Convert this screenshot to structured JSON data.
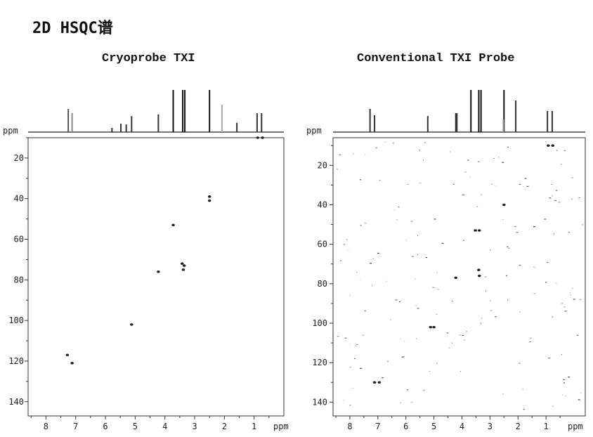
{
  "page_title": "2D HSQC谱",
  "chart_data": [
    {
      "type": "scatter",
      "subtype": "2D NMR contour (HSQC)",
      "title": "Cryoprobe TXI",
      "x_unit": "ppm",
      "y_unit": "ppm",
      "x_ticks": [
        8,
        7,
        6,
        5,
        4,
        3,
        2,
        1
      ],
      "y_ticks": [
        20,
        40,
        60,
        80,
        100,
        120,
        140
      ],
      "xlim": [
        8.6,
        0.0
      ],
      "ylim": [
        10,
        147
      ],
      "x_reversed": true,
      "y_reversed": true,
      "projection_peaks": [
        {
          "ppm": 7.25,
          "h": 0.55,
          "color": "#555555"
        },
        {
          "ppm": 7.12,
          "h": 0.45,
          "color": "#888888"
        },
        {
          "ppm": 5.78,
          "h": 0.1,
          "color": "#333333"
        },
        {
          "ppm": 5.48,
          "h": 0.2,
          "color": "#333333"
        },
        {
          "ppm": 5.3,
          "h": 0.18,
          "color": "#333333"
        },
        {
          "ppm": 5.12,
          "h": 0.38,
          "color": "#333333"
        },
        {
          "ppm": 4.22,
          "h": 0.42,
          "color": "#333333"
        },
        {
          "ppm": 3.72,
          "h": 1.0,
          "color": "#111111"
        },
        {
          "ppm": 3.4,
          "h": 1.0,
          "color": "#111111"
        },
        {
          "ppm": 3.33,
          "h": 1.0,
          "color": "#111111"
        },
        {
          "ppm": 2.5,
          "h": 1.0,
          "color": "#111111"
        },
        {
          "ppm": 2.08,
          "h": 0.65,
          "color": "#aaaaaa"
        },
        {
          "ppm": 1.58,
          "h": 0.22,
          "color": "#333333"
        },
        {
          "ppm": 0.9,
          "h": 0.45,
          "color": "#333333"
        },
        {
          "ppm": 0.75,
          "h": 0.45,
          "color": "#333333"
        }
      ],
      "peaks": [
        {
          "x": 0.88,
          "y": 10
        },
        {
          "x": 0.72,
          "y": 10
        },
        {
          "x": 2.5,
          "y": 39
        },
        {
          "x": 2.5,
          "y": 41
        },
        {
          "x": 3.72,
          "y": 53
        },
        {
          "x": 3.42,
          "y": 72
        },
        {
          "x": 3.35,
          "y": 73
        },
        {
          "x": 3.38,
          "y": 75
        },
        {
          "x": 4.22,
          "y": 76
        },
        {
          "x": 5.12,
          "y": 102
        },
        {
          "x": 7.28,
          "y": 117
        },
        {
          "x": 7.12,
          "y": 121
        }
      ]
    },
    {
      "type": "scatter",
      "subtype": "2D NMR contour (HSQC)",
      "title": "Conventional TXI Probe",
      "x_unit": "ppm",
      "y_unit": "ppm",
      "x_ticks": [
        8,
        7,
        6,
        5,
        4,
        3,
        2,
        1
      ],
      "y_ticks": [
        20,
        40,
        60,
        80,
        100,
        120,
        140
      ],
      "xlim": [
        8.6,
        -0.4
      ],
      "ylim": [
        6,
        147
      ],
      "x_reversed": true,
      "y_reversed": true,
      "projection_peaks": [
        {
          "ppm": 7.28,
          "h": 0.55,
          "color": "#333333"
        },
        {
          "ppm": 7.12,
          "h": 0.4,
          "color": "#333333"
        },
        {
          "ppm": 5.22,
          "h": 0.38,
          "color": "#333333"
        },
        {
          "ppm": 4.22,
          "h": 0.45,
          "color": "#333333"
        },
        {
          "ppm": 4.18,
          "h": 0.45,
          "color": "#333333"
        },
        {
          "ppm": 3.68,
          "h": 1.0,
          "color": "#111111"
        },
        {
          "ppm": 3.4,
          "h": 1.0,
          "color": "#111111"
        },
        {
          "ppm": 3.32,
          "h": 1.0,
          "color": "#111111"
        },
        {
          "ppm": 2.5,
          "h": 1.0,
          "color": "#111111"
        },
        {
          "ppm": 2.52,
          "h": 0.3,
          "color": "#999999"
        },
        {
          "ppm": 2.08,
          "h": 0.75,
          "color": "#333333"
        },
        {
          "ppm": 0.95,
          "h": 0.5,
          "color": "#333333"
        },
        {
          "ppm": 0.78,
          "h": 0.5,
          "color": "#333333"
        }
      ],
      "peaks": [
        {
          "x": 0.92,
          "y": 10
        },
        {
          "x": 0.76,
          "y": 10
        },
        {
          "x": 2.5,
          "y": 40
        },
        {
          "x": 3.52,
          "y": 53
        },
        {
          "x": 3.38,
          "y": 53
        },
        {
          "x": 3.4,
          "y": 73
        },
        {
          "x": 3.38,
          "y": 76
        },
        {
          "x": 4.22,
          "y": 77
        },
        {
          "x": 5.12,
          "y": 102
        },
        {
          "x": 5.0,
          "y": 102
        },
        {
          "x": 7.12,
          "y": 130
        },
        {
          "x": 6.95,
          "y": 130
        }
      ],
      "noise_dots": 170
    }
  ]
}
